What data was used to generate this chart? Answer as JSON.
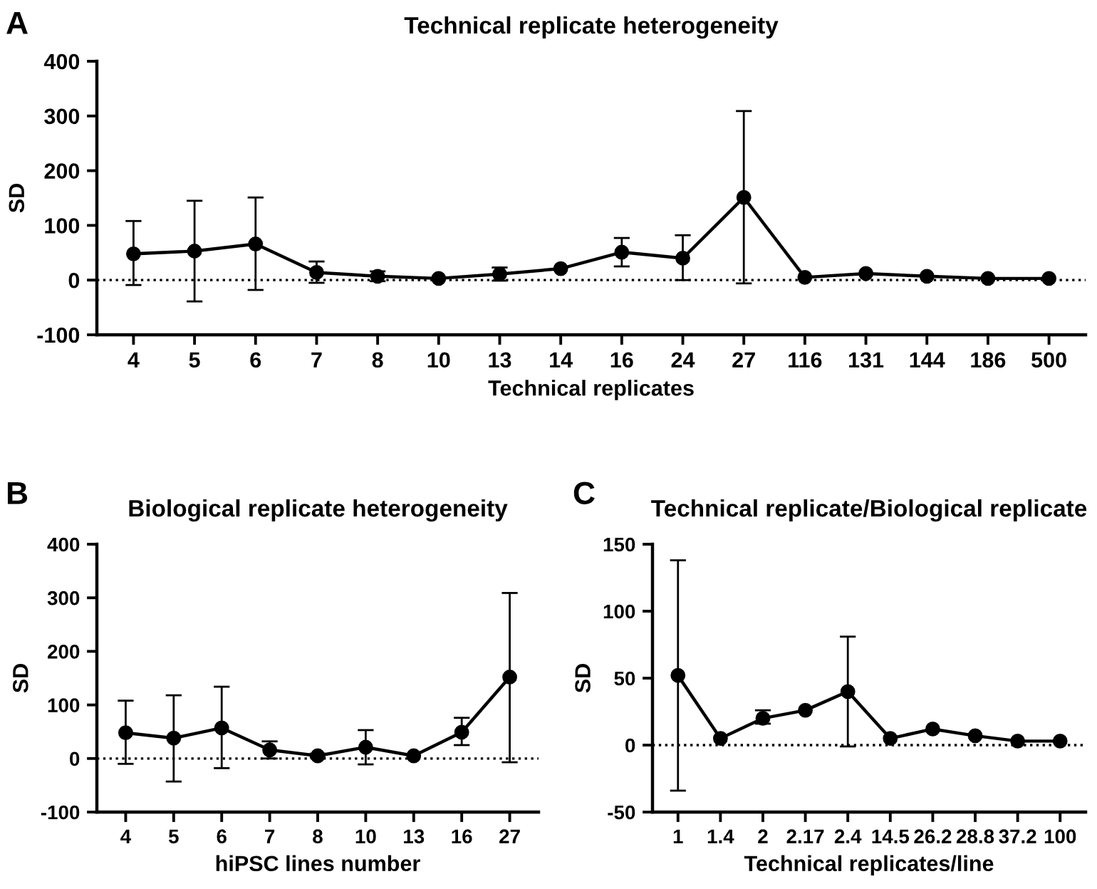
{
  "chart_data": [
    {
      "type": "line",
      "title": "Technical replicate heterogeneity",
      "xlabel": "Technical replicates",
      "ylabel": "SD",
      "annotations": [
        "A"
      ],
      "categories": [
        "4",
        "5",
        "6",
        "7",
        "8",
        "10",
        "13",
        "14",
        "16",
        "24",
        "27",
        "116",
        "131",
        "144",
        "186",
        "500"
      ],
      "series": [
        {
          "color": "#000000",
          "values": [
            48,
            53,
            66,
            14,
            7,
            3,
            11,
            21,
            51,
            40,
            151,
            5,
            12,
            7,
            3,
            3
          ],
          "errors": [
            [
              -9,
              108
            ],
            [
              -39,
              145
            ],
            [
              -18,
              151
            ],
            [
              -5,
              34
            ],
            [
              -2,
              16
            ],
            null,
            [
              -1,
              23
            ],
            null,
            [
              25,
              77
            ],
            [
              0,
              82
            ],
            [
              -6,
              309
            ],
            null,
            null,
            null,
            null,
            null
          ]
        }
      ],
      "ylim": [
        -100,
        400
      ],
      "yticks": [
        -100,
        0,
        100,
        200,
        300,
        400
      ],
      "marker": "circle",
      "line_style": "solid",
      "grid": false,
      "legend": false,
      "ref_lines": [
        {
          "axis": "y",
          "value": 0,
          "line_style": "dotted",
          "color": "#000000"
        }
      ]
    },
    {
      "type": "line",
      "title": "Biological replicate heterogeneity",
      "xlabel": "hiPSC lines number",
      "ylabel": "SD",
      "annotations": [
        "B"
      ],
      "categories": [
        "4",
        "5",
        "6",
        "7",
        "8",
        "10",
        "13",
        "16",
        "27"
      ],
      "series": [
        {
          "color": "#000000",
          "values": [
            48,
            38,
            57,
            16,
            5,
            21,
            5,
            49,
            152
          ],
          "errors": [
            [
              -10,
              108
            ],
            [
              -43,
              118
            ],
            [
              -18,
              134
            ],
            [
              0,
              32
            ],
            [
              2,
              9
            ],
            [
              -11,
              53
            ],
            null,
            [
              25,
              76
            ],
            [
              -7,
              309
            ]
          ]
        }
      ],
      "ylim": [
        -100,
        400
      ],
      "yticks": [
        -100,
        0,
        100,
        200,
        300,
        400
      ],
      "marker": "circle",
      "line_style": "solid",
      "grid": false,
      "legend": false,
      "ref_lines": [
        {
          "axis": "y",
          "value": 0,
          "line_style": "dotted",
          "color": "#000000"
        }
      ]
    },
    {
      "type": "line",
      "title": "Technical replicate/Biological replicate",
      "xlabel": "Technical replicates/line",
      "ylabel": "SD",
      "annotations": [
        "C"
      ],
      "categories": [
        "1",
        "1.4",
        "2",
        "2.17",
        "2.4",
        "14.5",
        "26.2",
        "28.8",
        "37.2",
        "100"
      ],
      "series": [
        {
          "color": "#000000",
          "values": [
            52,
            5,
            20,
            26,
            40,
            5,
            12,
            7,
            3,
            3
          ],
          "errors": [
            [
              -34,
              138
            ],
            null,
            [
              16,
              26
            ],
            null,
            [
              -1,
              81
            ],
            null,
            null,
            null,
            null,
            null
          ]
        }
      ],
      "ylim": [
        -50,
        150
      ],
      "yticks": [
        -50,
        0,
        50,
        100,
        150
      ],
      "marker": "circle",
      "line_style": "solid",
      "grid": false,
      "legend": false,
      "ref_lines": [
        {
          "axis": "y",
          "value": 0,
          "line_style": "dotted",
          "color": "#000000"
        }
      ]
    }
  ]
}
